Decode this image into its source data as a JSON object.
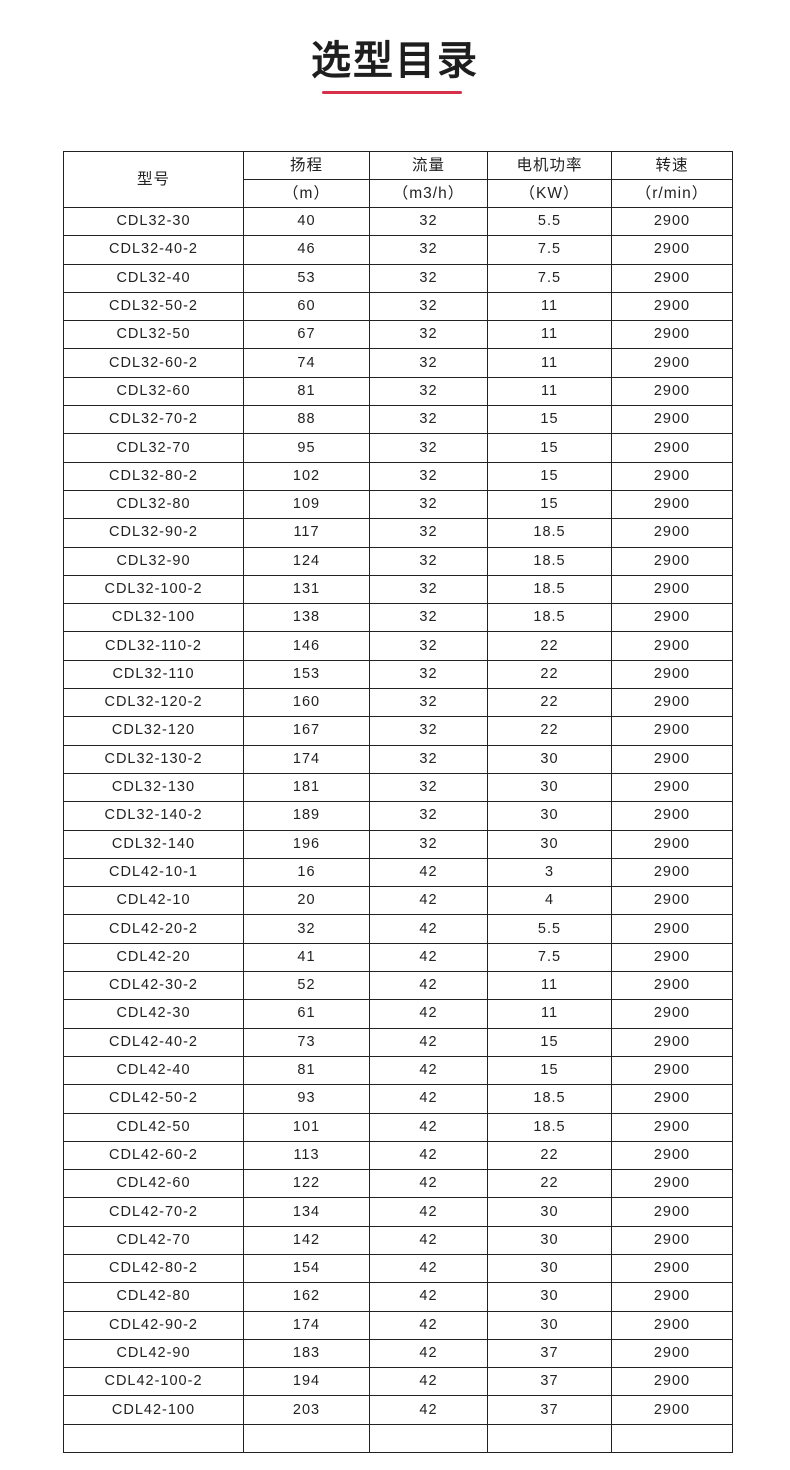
{
  "title": "选型目录",
  "colors": {
    "accent": "#d9304a",
    "border": "#222222"
  },
  "table": {
    "headers": {
      "model": "型号",
      "head": "扬程",
      "flow": "流量",
      "power": "电机功率",
      "speed": "转速"
    },
    "units": {
      "head": "（m）",
      "flow": "（m3/h）",
      "power": "（KW）",
      "speed": "（r/min）"
    },
    "rows": [
      [
        "CDL32-30",
        "40",
        "32",
        "5.5",
        "2900"
      ],
      [
        "CDL32-40-2",
        "46",
        "32",
        "7.5",
        "2900"
      ],
      [
        "CDL32-40",
        "53",
        "32",
        "7.5",
        "2900"
      ],
      [
        "CDL32-50-2",
        "60",
        "32",
        "11",
        "2900"
      ],
      [
        "CDL32-50",
        "67",
        "32",
        "11",
        "2900"
      ],
      [
        "CDL32-60-2",
        "74",
        "32",
        "11",
        "2900"
      ],
      [
        "CDL32-60",
        "81",
        "32",
        "11",
        "2900"
      ],
      [
        "CDL32-70-2",
        "88",
        "32",
        "15",
        "2900"
      ],
      [
        "CDL32-70",
        "95",
        "32",
        "15",
        "2900"
      ],
      [
        "CDL32-80-2",
        "102",
        "32",
        "15",
        "2900"
      ],
      [
        "CDL32-80",
        "109",
        "32",
        "15",
        "2900"
      ],
      [
        "CDL32-90-2",
        "117",
        "32",
        "18.5",
        "2900"
      ],
      [
        "CDL32-90",
        "124",
        "32",
        "18.5",
        "2900"
      ],
      [
        "CDL32-100-2",
        "131",
        "32",
        "18.5",
        "2900"
      ],
      [
        "CDL32-100",
        "138",
        "32",
        "18.5",
        "2900"
      ],
      [
        "CDL32-110-2",
        "146",
        "32",
        "22",
        "2900"
      ],
      [
        "CDL32-110",
        "153",
        "32",
        "22",
        "2900"
      ],
      [
        "CDL32-120-2",
        "160",
        "32",
        "22",
        "2900"
      ],
      [
        "CDL32-120",
        "167",
        "32",
        "22",
        "2900"
      ],
      [
        "CDL32-130-2",
        "174",
        "32",
        "30",
        "2900"
      ],
      [
        "CDL32-130",
        "181",
        "32",
        "30",
        "2900"
      ],
      [
        "CDL32-140-2",
        "189",
        "32",
        "30",
        "2900"
      ],
      [
        "CDL32-140",
        "196",
        "32",
        "30",
        "2900"
      ],
      [
        "CDL42-10-1",
        "16",
        "42",
        "3",
        "2900"
      ],
      [
        "CDL42-10",
        "20",
        "42",
        "4",
        "2900"
      ],
      [
        "CDL42-20-2",
        "32",
        "42",
        "5.5",
        "2900"
      ],
      [
        "CDL42-20",
        "41",
        "42",
        "7.5",
        "2900"
      ],
      [
        "CDL42-30-2",
        "52",
        "42",
        "11",
        "2900"
      ],
      [
        "CDL42-30",
        "61",
        "42",
        "11",
        "2900"
      ],
      [
        "CDL42-40-2",
        "73",
        "42",
        "15",
        "2900"
      ],
      [
        "CDL42-40",
        "81",
        "42",
        "15",
        "2900"
      ],
      [
        "CDL42-50-2",
        "93",
        "42",
        "18.5",
        "2900"
      ],
      [
        "CDL42-50",
        "101",
        "42",
        "18.5",
        "2900"
      ],
      [
        "CDL42-60-2",
        "113",
        "42",
        "22",
        "2900"
      ],
      [
        "CDL42-60",
        "122",
        "42",
        "22",
        "2900"
      ],
      [
        "CDL42-70-2",
        "134",
        "42",
        "30",
        "2900"
      ],
      [
        "CDL42-70",
        "142",
        "42",
        "30",
        "2900"
      ],
      [
        "CDL42-80-2",
        "154",
        "42",
        "30",
        "2900"
      ],
      [
        "CDL42-80",
        "162",
        "42",
        "30",
        "2900"
      ],
      [
        "CDL42-90-2",
        "174",
        "42",
        "30",
        "2900"
      ],
      [
        "CDL42-90",
        "183",
        "42",
        "37",
        "2900"
      ],
      [
        "CDL42-100-2",
        "194",
        "42",
        "37",
        "2900"
      ],
      [
        "CDL42-100",
        "203",
        "42",
        "37",
        "2900"
      ]
    ]
  }
}
